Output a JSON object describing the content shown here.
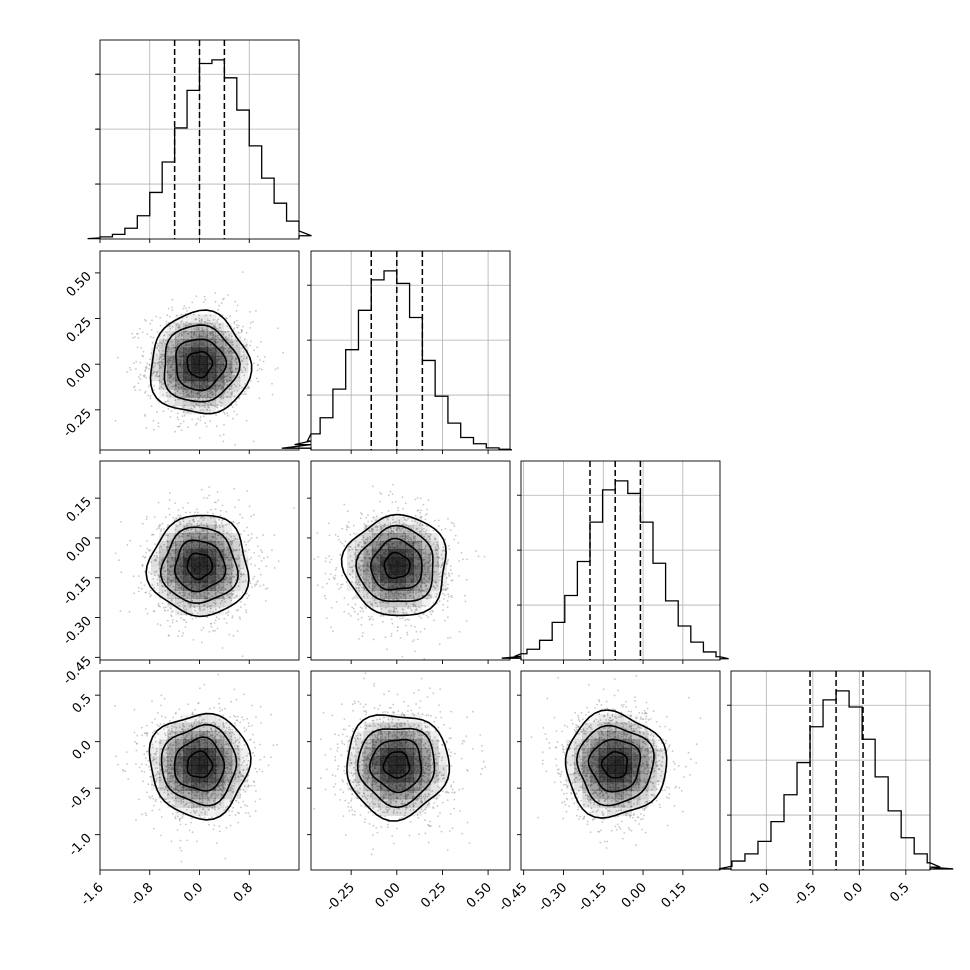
{
  "chart_data": {
    "type": "corner",
    "parameters": 4,
    "colors": {
      "line": "#000000",
      "points": "#9a9a9a",
      "density": "#000000",
      "grid": "#b0b0b0"
    },
    "grid": true,
    "marginals": [
      {
        "index": 0,
        "range": [
          -1.6,
          1.6
        ],
        "ticks": [
          "-1.6",
          "-0.8",
          "0.0",
          "0.8"
        ],
        "tick_values": [
          -1.6,
          -0.8,
          0.0,
          0.8
        ],
        "quantiles": [
          -0.4,
          0.0,
          0.4
        ],
        "mean": 0.0,
        "sigma": 0.4,
        "hist_bins": [
          0.002,
          0.006,
          0.012,
          0.026,
          0.06,
          0.13,
          0.26,
          0.43,
          0.62,
          0.83,
          0.98,
          1.0,
          0.9,
          0.72,
          0.52,
          0.34,
          0.2,
          0.1,
          0.045,
          0.018
        ]
      },
      {
        "index": 1,
        "range": [
          -0.47,
          0.62
        ],
        "ticks": [
          "-0.25",
          "0.00",
          "0.25",
          "0.50"
        ],
        "tick_values": [
          -0.25,
          0.0,
          0.25,
          0.5
        ],
        "quantiles": [
          -0.14,
          0.0,
          0.14
        ],
        "mean": 0.0,
        "sigma": 0.14,
        "hist_bins": [
          0.01,
          0.03,
          0.05,
          0.09,
          0.18,
          0.34,
          0.56,
          0.78,
          0.95,
          1.0,
          0.93,
          0.74,
          0.5,
          0.3,
          0.15,
          0.07,
          0.035,
          0.012,
          0.004,
          0.001
        ]
      },
      {
        "index": 2,
        "range": [
          -0.46,
          0.29
        ],
        "ticks": [
          "-0.45",
          "-0.30",
          "-0.15",
          "0.00",
          "0.15"
        ],
        "tick_values": [
          -0.45,
          -0.3,
          -0.15,
          0.0,
          0.15
        ],
        "quantiles": [
          -0.2,
          -0.105,
          -0.01
        ],
        "mean": -0.105,
        "sigma": 0.095,
        "hist_bins": [
          0.01,
          0.02,
          0.035,
          0.06,
          0.11,
          0.21,
          0.36,
          0.55,
          0.77,
          0.95,
          1.0,
          0.93,
          0.77,
          0.54,
          0.33,
          0.19,
          0.1,
          0.045,
          0.018,
          0.007
        ]
      },
      {
        "index": 3,
        "range": [
          -1.38,
          0.76
        ],
        "ticks": [
          "-1.0",
          "-0.5",
          "0.0",
          "0.5"
        ],
        "tick_values": [
          -1.0,
          -0.5,
          0.0,
          0.5
        ],
        "quantiles": [
          -0.53,
          -0.25,
          0.04
        ],
        "mean": -0.25,
        "sigma": 0.28,
        "hist_bins": [
          0.006,
          0.02,
          0.05,
          0.09,
          0.16,
          0.27,
          0.42,
          0.6,
          0.8,
          0.95,
          1.0,
          0.91,
          0.73,
          0.52,
          0.33,
          0.18,
          0.09,
          0.04,
          0.016,
          0.006
        ]
      }
    ],
    "pairs": [
      {
        "x": 0,
        "y": 1
      },
      {
        "x": 0,
        "y": 2
      },
      {
        "x": 1,
        "y": 2
      },
      {
        "x": 0,
        "y": 3
      },
      {
        "x": 1,
        "y": 3
      },
      {
        "x": 2,
        "y": 3
      }
    ],
    "contour_levels_sigma": [
      0.5,
      1.0,
      1.5,
      2.0
    ],
    "samples_per_panel": 1500
  }
}
